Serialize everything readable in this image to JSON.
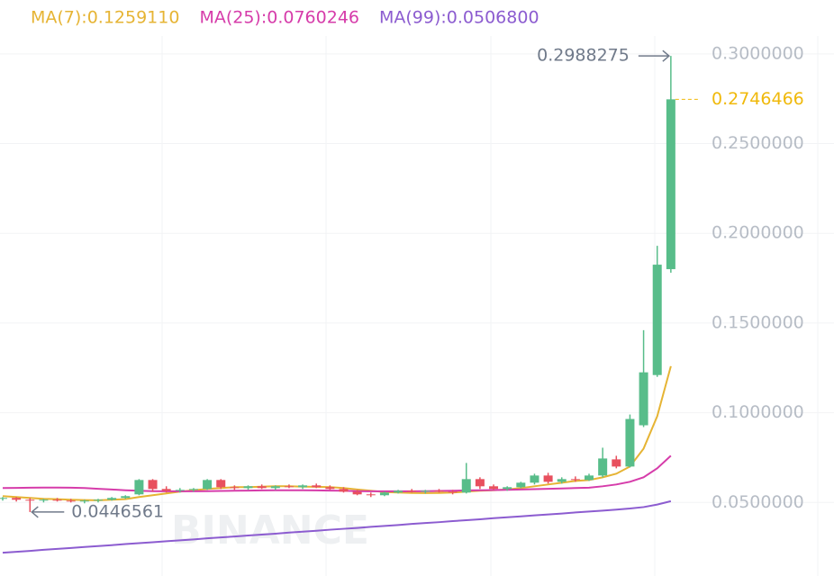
{
  "chart_data": {
    "type": "candlestick",
    "watermark": "BINANCE",
    "ylim": [
      0.009,
      0.33
    ],
    "yticks": [
      {
        "value": 0.05,
        "label": "0.0500000"
      },
      {
        "value": 0.1,
        "label": "0.1000000"
      },
      {
        "value": 0.15,
        "label": "0.1500000"
      },
      {
        "value": 0.2,
        "label": "0.2000000"
      },
      {
        "value": 0.25,
        "label": "0.2500000"
      },
      {
        "value": 0.3,
        "label": "0.3000000"
      }
    ],
    "grid": true,
    "up_color": "#58bd8a",
    "down_color": "#e8505e",
    "candles": {
      "open": [
        0.052,
        0.0525,
        0.0515,
        0.051,
        0.0515,
        0.051,
        0.0505,
        0.051,
        0.0515,
        0.0525,
        0.0545,
        0.0625,
        0.0575,
        0.0565,
        0.057,
        0.0575,
        0.0625,
        0.0585,
        0.058,
        0.059,
        0.058,
        0.059,
        0.0585,
        0.0595,
        0.0585,
        0.0575,
        0.056,
        0.0545,
        0.054,
        0.0555,
        0.0565,
        0.056,
        0.0565,
        0.056,
        0.0555,
        0.063,
        0.059,
        0.0575,
        0.0585,
        0.061,
        0.065,
        0.0615,
        0.063,
        0.0625,
        0.065,
        0.074,
        0.07,
        0.093,
        0.121,
        0.18
      ],
      "high": [
        0.053,
        0.053,
        0.0525,
        0.052,
        0.0525,
        0.052,
        0.0515,
        0.052,
        0.053,
        0.054,
        0.063,
        0.063,
        0.059,
        0.058,
        0.058,
        0.063,
        0.063,
        0.0595,
        0.0595,
        0.06,
        0.0595,
        0.06,
        0.06,
        0.0605,
        0.0595,
        0.0585,
        0.057,
        0.0555,
        0.056,
        0.057,
        0.0575,
        0.057,
        0.0575,
        0.057,
        0.072,
        0.064,
        0.06,
        0.059,
        0.0615,
        0.066,
        0.0665,
        0.064,
        0.0645,
        0.066,
        0.0805,
        0.076,
        0.099,
        0.146,
        0.193,
        0.2988275
      ],
      "low": [
        0.051,
        0.0505,
        0.0446561,
        0.05,
        0.0505,
        0.05,
        0.0495,
        0.05,
        0.051,
        0.052,
        0.054,
        0.056,
        0.0555,
        0.0555,
        0.056,
        0.057,
        0.0575,
        0.057,
        0.057,
        0.0575,
        0.057,
        0.058,
        0.0575,
        0.058,
        0.057,
        0.0555,
        0.054,
        0.053,
        0.0535,
        0.055,
        0.0555,
        0.055,
        0.0555,
        0.0545,
        0.055,
        0.0575,
        0.057,
        0.0565,
        0.058,
        0.06,
        0.0605,
        0.0605,
        0.0615,
        0.062,
        0.064,
        0.069,
        0.0695,
        0.092,
        0.12,
        0.178
      ],
      "close": [
        0.0525,
        0.0515,
        0.051,
        0.0515,
        0.051,
        0.0505,
        0.051,
        0.0515,
        0.0525,
        0.0535,
        0.0625,
        0.0575,
        0.0565,
        0.057,
        0.0575,
        0.0625,
        0.0585,
        0.058,
        0.059,
        0.058,
        0.059,
        0.0585,
        0.0595,
        0.0585,
        0.0575,
        0.056,
        0.0545,
        0.054,
        0.0555,
        0.0565,
        0.056,
        0.0565,
        0.056,
        0.0555,
        0.063,
        0.059,
        0.0575,
        0.0585,
        0.061,
        0.065,
        0.0615,
        0.063,
        0.0625,
        0.065,
        0.0745,
        0.07,
        0.0965,
        0.1225,
        0.1825,
        0.2746466
      ]
    },
    "series": [
      {
        "name": "MA(7):0.1259110",
        "color": "#e6b434",
        "values": [
          0.0535,
          0.053,
          0.0525,
          0.052,
          0.0518,
          0.0515,
          0.0513,
          0.0512,
          0.0515,
          0.0518,
          0.053,
          0.054,
          0.055,
          0.056,
          0.0568,
          0.0575,
          0.058,
          0.0585,
          0.0585,
          0.0588,
          0.059,
          0.059,
          0.0588,
          0.0587,
          0.0585,
          0.058,
          0.0572,
          0.0565,
          0.0558,
          0.0555,
          0.0553,
          0.0552,
          0.0553,
          0.0555,
          0.056,
          0.0565,
          0.0568,
          0.0572,
          0.058,
          0.059,
          0.06,
          0.061,
          0.062,
          0.0625,
          0.064,
          0.066,
          0.07,
          0.08,
          0.098,
          0.125911
        ]
      },
      {
        "name": "MA(25):0.0760246",
        "color": "#d63caa",
        "values": [
          0.058,
          0.0581,
          0.0582,
          0.0583,
          0.0583,
          0.0582,
          0.058,
          0.0576,
          0.0572,
          0.0568,
          0.0565,
          0.0563,
          0.0562,
          0.0562,
          0.0562,
          0.0563,
          0.0564,
          0.0565,
          0.0566,
          0.0567,
          0.0568,
          0.0568,
          0.0568,
          0.0567,
          0.0566,
          0.0565,
          0.0563,
          0.0562,
          0.0562,
          0.0562,
          0.0562,
          0.0563,
          0.0564,
          0.0565,
          0.0567,
          0.0568,
          0.0569,
          0.057,
          0.0572,
          0.0574,
          0.0576,
          0.0578,
          0.058,
          0.0582,
          0.059,
          0.06,
          0.0615,
          0.064,
          0.069,
          0.0760246
        ]
      },
      {
        "name": "MA(99):0.0506800",
        "color": "#8c5cd0",
        "values": [
          0.022,
          0.0225,
          0.023,
          0.0236,
          0.0241,
          0.0246,
          0.0252,
          0.0257,
          0.0262,
          0.0268,
          0.0273,
          0.0278,
          0.0284,
          0.0289,
          0.0294,
          0.03,
          0.0305,
          0.031,
          0.0316,
          0.0321,
          0.0326,
          0.0332,
          0.0337,
          0.0342,
          0.0348,
          0.0353,
          0.0358,
          0.0364,
          0.0369,
          0.0374,
          0.038,
          0.0385,
          0.039,
          0.0396,
          0.0401,
          0.0406,
          0.0412,
          0.0417,
          0.0422,
          0.0428,
          0.0433,
          0.0438,
          0.0444,
          0.0449,
          0.0454,
          0.046,
          0.0466,
          0.0474,
          0.0488,
          0.05068
        ]
      }
    ],
    "high_label": 0.2988275,
    "low_label": 0.0446561,
    "last_price": 0.2746466,
    "last_price_color": "#f0b90b"
  }
}
